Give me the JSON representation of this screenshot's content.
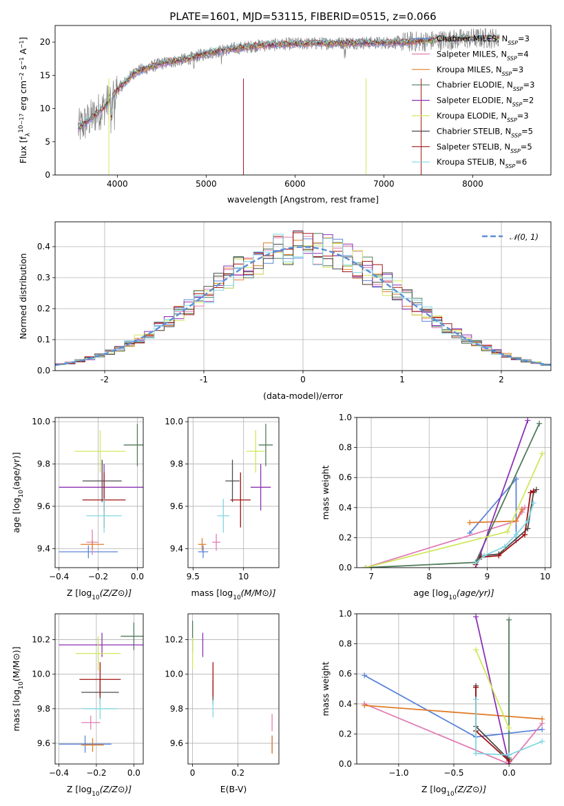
{
  "page_title": "PLATE=1601, MJD=53115, FIBERID=0515, z=0.066",
  "colors": {
    "Chabrier MILES": "#5b84d9",
    "Salpeter MILES": "#e27bb4",
    "Kroupa MILES": "#e07b27",
    "Chabrier ELODIE": "#4e7a58",
    "Salpeter ELODIE": "#8c2fb4",
    "Kroupa ELODIE": "#cfe85a",
    "Chabrier STELIB": "#4a4a4a",
    "Salpeter STELIB": "#a01010",
    "Kroupa STELIB": "#7fd7e0",
    "normal": "#5b8fd6",
    "data": "#808080"
  },
  "chart_data": [
    {
      "type": "line",
      "title": "PLATE=1601, MJD=53115, FIBERID=0515, z=0.066",
      "xlabel": "wavelength [Angstrom, rest frame]",
      "ylabel": "Flux [f",
      "xlim": [
        3300,
        8880
      ],
      "ylim": [
        0,
        22.5
      ],
      "xticks": [
        4000,
        5000,
        6000,
        7000,
        8000
      ],
      "yticks": [
        0,
        5,
        10,
        15,
        20
      ],
      "grid": false,
      "legend_position": "top-right",
      "legend": [
        {
          "name": "Chabrier MILES",
          "n": "3"
        },
        {
          "name": "Salpeter MILES",
          "n": "4"
        },
        {
          "name": "Kroupa MILES",
          "n": "3"
        },
        {
          "name": "Chabrier ELODIE",
          "n": "3"
        },
        {
          "name": "Salpeter ELODIE",
          "n": "2"
        },
        {
          "name": "Kroupa ELODIE",
          "n": "3"
        },
        {
          "name": "Chabrier STELIB",
          "n": "5"
        },
        {
          "name": "Salpeter STELIB",
          "n": "5"
        },
        {
          "name": "Kroupa STELIB",
          "n": "6"
        }
      ],
      "continuum": [
        [
          3560,
          7.0
        ],
        [
          3700,
          8.5
        ],
        [
          3850,
          10.2
        ],
        [
          4000,
          12.8
        ],
        [
          4200,
          15.5
        ],
        [
          4500,
          16.8
        ],
        [
          4800,
          17.5
        ],
        [
          5000,
          18.3
        ],
        [
          5300,
          19.0
        ],
        [
          5600,
          19.5
        ],
        [
          5900,
          19.7
        ],
        [
          6200,
          19.8
        ],
        [
          6600,
          19.9
        ],
        [
          7000,
          19.9
        ],
        [
          7400,
          20.1
        ],
        [
          7800,
          20.4
        ],
        [
          8100,
          20.6
        ],
        [
          8300,
          20.6
        ]
      ]
    },
    {
      "type": "step",
      "xlabel": "(data-model)/error",
      "ylabel": "Normed distribution",
      "xlim": [
        -2.5,
        2.5
      ],
      "ylim": [
        0,
        0.48
      ],
      "xticks": [
        -2,
        -1,
        0,
        1,
        2
      ],
      "yticks": [
        0.0,
        0.1,
        0.2,
        0.3,
        0.4
      ],
      "grid": true,
      "legend": "𝒩(0, 1)",
      "legend_position": "top-right"
    },
    {
      "type": "errorbar",
      "xlabel": "Z [log",
      "ylabel": "age  [log",
      "xlim": [
        -0.42,
        0.03
      ],
      "ylim": [
        9.31,
        10.02
      ],
      "xticks": [
        -0.4,
        -0.2,
        0.0
      ],
      "xticklabels": [
        "−0.4",
        "−0.2",
        "0.0"
      ],
      "yticks": [
        9.4,
        9.6,
        9.8,
        10.0
      ],
      "grid": true,
      "points": [
        {
          "series": "Chabrier MILES",
          "x": -0.25,
          "xerr": 0.15,
          "y": 9.385,
          "yerr": 0.03
        },
        {
          "series": "Salpeter MILES",
          "x": -0.23,
          "xerr": 0.03,
          "y": 9.43,
          "yerr": 0.06
        },
        {
          "series": "Kroupa MILES",
          "x": -0.23,
          "xerr": 0.06,
          "y": 9.42,
          "yerr": 0.02
        },
        {
          "series": "Chabrier ELODIE",
          "x": 0.0,
          "xerr": 0.07,
          "y": 9.89,
          "yerr": 0.1
        },
        {
          "series": "Salpeter ELODIE",
          "x": -0.17,
          "xerr": 0.23,
          "y": 9.69,
          "yerr": 0.11
        },
        {
          "series": "Kroupa ELODIE",
          "x": -0.19,
          "xerr": 0.13,
          "y": 9.86,
          "yerr": 0.1
        },
        {
          "series": "Chabrier STELIB",
          "x": -0.18,
          "xerr": 0.1,
          "y": 9.72,
          "yerr": 0.1
        },
        {
          "series": "Salpeter STELIB",
          "x": -0.17,
          "xerr": 0.11,
          "y": 9.63,
          "yerr": 0.13
        },
        {
          "series": "Kroupa STELIB",
          "x": -0.17,
          "xerr": 0.09,
          "y": 9.555,
          "yerr": 0.08
        }
      ]
    },
    {
      "type": "errorbar",
      "xlabel": "mass [log",
      "ylabel": "",
      "xlim": [
        9.45,
        10.35
      ],
      "ylim": [
        9.31,
        10.02
      ],
      "xticks": [
        9.5,
        10.0
      ],
      "yticks": [
        9.4,
        9.6,
        9.8,
        10.0
      ],
      "grid": true,
      "points": [
        {
          "series": "Chabrier MILES",
          "x": 9.6,
          "xerr": 0.05,
          "y": 9.385,
          "yerr": 0.03
        },
        {
          "series": "Salpeter MILES",
          "x": 9.73,
          "xerr": 0.04,
          "y": 9.43,
          "yerr": 0.04
        },
        {
          "series": "Kroupa MILES",
          "x": 9.59,
          "xerr": 0.04,
          "y": 9.42,
          "yerr": 0.03
        },
        {
          "series": "Chabrier ELODIE",
          "x": 10.22,
          "xerr": 0.07,
          "y": 9.89,
          "yerr": 0.1
        },
        {
          "series": "Salpeter ELODIE",
          "x": 10.17,
          "xerr": 0.1,
          "y": 9.69,
          "yerr": 0.11
        },
        {
          "series": "Kroupa ELODIE",
          "x": 10.12,
          "xerr": 0.09,
          "y": 9.86,
          "yerr": 0.1
        },
        {
          "series": "Chabrier STELIB",
          "x": 9.89,
          "xerr": 0.07,
          "y": 9.72,
          "yerr": 0.1
        },
        {
          "series": "Salpeter STELIB",
          "x": 9.97,
          "xerr": 0.1,
          "y": 9.63,
          "yerr": 0.13
        },
        {
          "series": "Kroupa STELIB",
          "x": 9.8,
          "xerr": 0.06,
          "y": 9.555,
          "yerr": 0.08
        }
      ]
    },
    {
      "type": "line",
      "xlabel": "age  [log",
      "ylabel": "mass weight",
      "xlim": [
        6.75,
        10.1
      ],
      "ylim": [
        0,
        1.0
      ],
      "xticks": [
        7,
        8,
        9,
        10
      ],
      "yticks": [
        0.0,
        0.2,
        0.4,
        0.6,
        0.8,
        1.0
      ],
      "grid": true,
      "series": [
        {
          "name": "Chabrier MILES",
          "x": [
            8.7,
            9.5,
            9.5
          ],
          "y": [
            0.23,
            0.59,
            0.18
          ]
        },
        {
          "name": "Salpeter MILES",
          "x": [
            6.9,
            9.5,
            9.6,
            9.65
          ],
          "y": [
            0.0,
            0.31,
            0.37,
            0.4
          ]
        },
        {
          "name": "Kroupa MILES",
          "x": [
            8.7,
            9.5,
            9.6
          ],
          "y": [
            0.3,
            0.31,
            0.39
          ]
        },
        {
          "name": "Chabrier ELODIE",
          "x": [
            6.9,
            8.8,
            9.9
          ],
          "y": [
            0.0,
            0.035,
            0.96
          ]
        },
        {
          "name": "Salpeter ELODIE",
          "x": [
            8.8,
            9.7
          ],
          "y": [
            0.0,
            0.98
          ]
        },
        {
          "name": "Kroupa ELODIE",
          "x": [
            6.9,
            9.35,
            9.95
          ],
          "y": [
            0.0,
            0.24,
            0.76
          ]
        },
        {
          "name": "Chabrier STELIB",
          "x": [
            8.8,
            8.9,
            9.2,
            9.7,
            9.8,
            9.85
          ],
          "y": [
            0.03,
            0.08,
            0.09,
            0.26,
            0.5,
            0.52
          ]
        },
        {
          "name": "Salpeter STELIB",
          "x": [
            8.8,
            8.9,
            9.2,
            9.65,
            9.75,
            9.8
          ],
          "y": [
            0.02,
            0.07,
            0.08,
            0.22,
            0.5,
            0.51
          ]
        },
        {
          "name": "Kroupa STELIB",
          "x": [
            8.8,
            8.95,
            9.3,
            9.5,
            9.7,
            9.8
          ],
          "y": [
            0.03,
            0.08,
            0.14,
            0.22,
            0.31,
            0.43
          ]
        }
      ]
    },
    {
      "type": "errorbar",
      "xlabel": "Z [log",
      "ylabel": "mass [log",
      "xlim": [
        -0.42,
        0.05
      ],
      "ylim": [
        9.48,
        10.35
      ],
      "xticks": [
        -0.4,
        -0.2,
        0.0
      ],
      "xticklabels": [
        "−0.4",
        "−0.2",
        "0.0"
      ],
      "yticks": [
        9.6,
        9.8,
        10.0,
        10.2
      ],
      "grid": true,
      "points": [
        {
          "series": "Chabrier MILES",
          "x": -0.26,
          "xerr": 0.14,
          "y": 9.595,
          "yerr": 0.05
        },
        {
          "series": "Salpeter MILES",
          "x": -0.23,
          "xerr": 0.05,
          "y": 9.72,
          "yerr": 0.04
        },
        {
          "series": "Kroupa MILES",
          "x": -0.22,
          "xerr": 0.06,
          "y": 9.59,
          "yerr": 0.04
        },
        {
          "series": "Chabrier ELODIE",
          "x": 0.0,
          "xerr": 0.07,
          "y": 10.22,
          "yerr": 0.08
        },
        {
          "series": "Salpeter ELODIE",
          "x": -0.17,
          "xerr": 0.23,
          "y": 10.17,
          "yerr": 0.07
        },
        {
          "series": "Kroupa ELODIE",
          "x": -0.19,
          "xerr": 0.12,
          "y": 10.12,
          "yerr": 0.1
        },
        {
          "series": "Chabrier STELIB",
          "x": -0.18,
          "xerr": 0.1,
          "y": 9.895,
          "yerr": 0.07
        },
        {
          "series": "Salpeter STELIB",
          "x": -0.18,
          "xerr": 0.11,
          "y": 9.97,
          "yerr": 0.1
        },
        {
          "series": "Kroupa STELIB",
          "x": -0.18,
          "xerr": 0.09,
          "y": 9.8,
          "yerr": 0.06
        }
      ]
    },
    {
      "type": "errorbar",
      "xlabel": "E(B-V)",
      "ylabel": "",
      "xlim": [
        -0.02,
        0.38
      ],
      "ylim": [
        9.48,
        10.35
      ],
      "xticks": [
        0.0,
        0.2
      ],
      "yticks": [
        9.6,
        9.8,
        10.0,
        10.2
      ],
      "grid": true,
      "points": [
        {
          "series": "Chabrier MILES",
          "x": 0.35,
          "xerr": 0.0,
          "y": 9.595,
          "yerr": 0.05
        },
        {
          "series": "Salpeter MILES",
          "x": 0.35,
          "xerr": 0.0,
          "y": 9.72,
          "yerr": 0.05
        },
        {
          "series": "Kroupa MILES",
          "x": 0.35,
          "xerr": 0.0,
          "y": 9.59,
          "yerr": 0.05
        },
        {
          "series": "Chabrier ELODIE",
          "x": 0.0,
          "xerr": 0.0,
          "y": 10.22,
          "yerr": 0.09
        },
        {
          "series": "Salpeter ELODIE",
          "x": 0.045,
          "xerr": 0.0,
          "y": 10.17,
          "yerr": 0.07
        },
        {
          "series": "Kroupa ELODIE",
          "x": 0.0,
          "xerr": 0.0,
          "y": 10.12,
          "yerr": 0.09
        },
        {
          "series": "Chabrier STELIB",
          "x": 0.09,
          "xerr": 0.0,
          "y": 9.895,
          "yerr": 0.07
        },
        {
          "series": "Salpeter STELIB",
          "x": 0.09,
          "xerr": 0.0,
          "y": 9.97,
          "yerr": 0.1
        },
        {
          "series": "Kroupa STELIB",
          "x": 0.09,
          "xerr": 0.0,
          "y": 9.8,
          "yerr": 0.05
        }
      ]
    },
    {
      "type": "line",
      "xlabel": "Z [log",
      "ylabel": "mass weight",
      "xlim": [
        -1.38,
        0.38
      ],
      "ylim": [
        0,
        1.0
      ],
      "xticks": [
        -1.0,
        -0.5,
        0.0
      ],
      "xticklabels": [
        "−1.0",
        "−0.5",
        "0.0"
      ],
      "yticks": [
        0.0,
        0.2,
        0.4,
        0.6,
        0.8,
        1.0
      ],
      "grid": true,
      "series": [
        {
          "name": "Chabrier MILES",
          "x": [
            -1.31,
            -0.3,
            0.3
          ],
          "y": [
            0.59,
            0.18,
            0.23
          ]
        },
        {
          "name": "Salpeter MILES",
          "x": [
            -1.31,
            0.0,
            0.3
          ],
          "y": [
            0.4,
            0.0,
            0.27
          ]
        },
        {
          "name": "Kroupa MILES",
          "x": [
            -1.31,
            0.3
          ],
          "y": [
            0.39,
            0.3
          ]
        },
        {
          "name": "Chabrier ELODIE",
          "x": [
            0.0,
            0.0
          ],
          "y": [
            0.04,
            0.96
          ]
        },
        {
          "name": "Salpeter ELODIE",
          "x": [
            -0.3,
            0.0
          ],
          "y": [
            0.98,
            0.0
          ]
        },
        {
          "name": "Kroupa ELODIE",
          "x": [
            -0.3,
            0.0
          ],
          "y": [
            0.76,
            0.24
          ]
        },
        {
          "name": "Chabrier STELIB",
          "x": [
            -0.3,
            -0.3,
            0.0
          ],
          "y": [
            0.52,
            0.25,
            0.03
          ]
        },
        {
          "name": "Salpeter STELIB",
          "x": [
            -0.3,
            -0.3,
            0.0
          ],
          "y": [
            0.51,
            0.22,
            0.02
          ]
        },
        {
          "name": "Kroupa STELIB",
          "x": [
            -0.3,
            -0.3,
            0.0,
            0.3
          ],
          "y": [
            0.43,
            0.07,
            0.06,
            0.15
          ]
        }
      ]
    }
  ]
}
